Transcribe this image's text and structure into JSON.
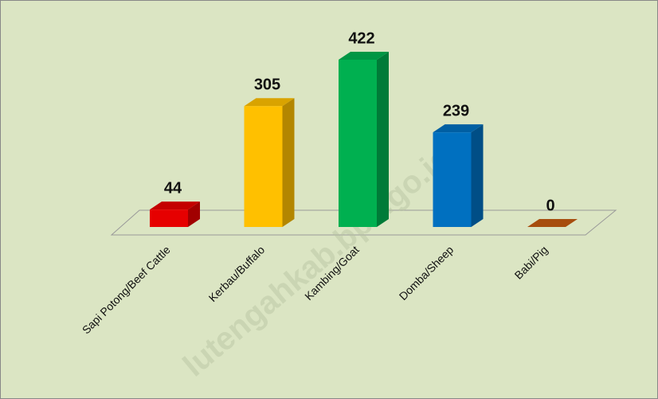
{
  "chart_data": {
    "type": "bar3d",
    "categories": [
      "Sapi Potong/Beef Cattle",
      "Kerbau/Buffalo",
      "Kambing/Goat",
      "Domba/Sheep",
      "Babi/Pig"
    ],
    "values": [
      44,
      305,
      422,
      239,
      0
    ],
    "colors": [
      "#e60000",
      "#ffc000",
      "#00b050",
      "#0070c0",
      "#c55a11"
    ],
    "watermark": "lutengahkab.bps.go.id"
  }
}
